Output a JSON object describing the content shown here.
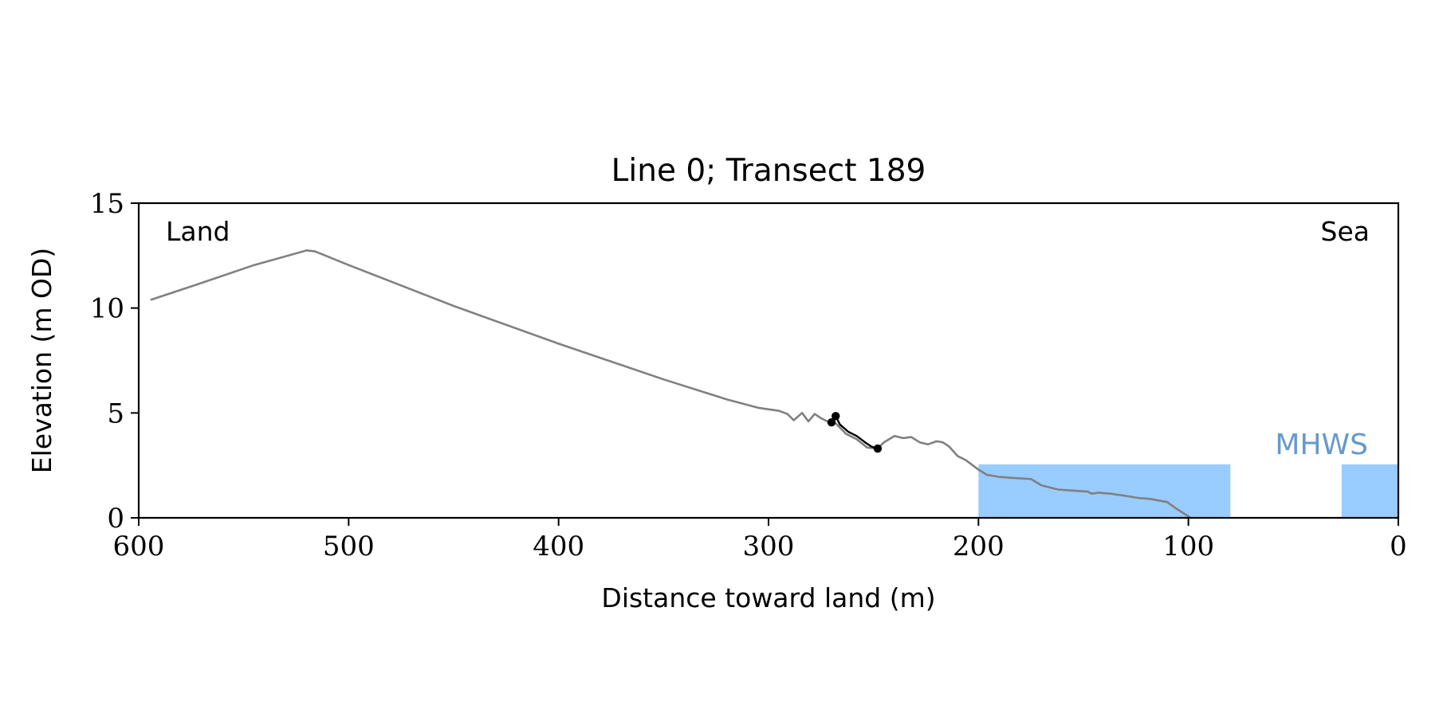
{
  "chart_data": {
    "type": "line",
    "title": "Line 0; Transect 189",
    "xlabel": "Distance toward land (m)",
    "ylabel": "Elevation (m OD)",
    "xlim": [
      600,
      0
    ],
    "ylim": [
      0,
      15
    ],
    "x_ticks": [
      600,
      500,
      400,
      300,
      200,
      100,
      0
    ],
    "y_ticks": [
      0,
      5,
      10,
      15
    ],
    "grid": false,
    "corner_labels": {
      "left": "Land",
      "right": "Sea"
    },
    "mhws": {
      "label": "MHWS",
      "level": 2.55,
      "color": "#99ccff",
      "label_color": "#6699cc",
      "regions": [
        [
          200,
          80
        ],
        [
          27,
          0
        ]
      ]
    },
    "series": [
      {
        "color": "#808080",
        "x": [
          594,
          570,
          545,
          520,
          516,
          500,
          450,
          400,
          350,
          320,
          305,
          295,
          291,
          288,
          284,
          281,
          278,
          275,
          272,
          268,
          263,
          258,
          253,
          248,
          245,
          240,
          236,
          232,
          228,
          224,
          220,
          217,
          214,
          210,
          206,
          200,
          196,
          190,
          183,
          175,
          170,
          162,
          155,
          148,
          146,
          143,
          137,
          130,
          124,
          118,
          110,
          106,
          102,
          99
        ],
        "y": [
          10.4,
          11.2,
          12.05,
          12.75,
          12.7,
          12.05,
          10.1,
          8.3,
          6.6,
          5.65,
          5.25,
          5.1,
          4.95,
          4.65,
          5.0,
          4.6,
          4.95,
          4.75,
          4.6,
          4.5,
          4.0,
          3.75,
          3.35,
          3.3,
          3.6,
          3.9,
          3.8,
          3.85,
          3.6,
          3.5,
          3.65,
          3.6,
          3.4,
          2.95,
          2.75,
          2.3,
          2.05,
          1.95,
          1.9,
          1.85,
          1.55,
          1.35,
          1.3,
          1.25,
          1.15,
          1.2,
          1.15,
          1.05,
          0.95,
          0.9,
          0.75,
          0.45,
          0.2,
          0.0
        ]
      },
      {
        "color": "#000000",
        "x": [
          270,
          268,
          266,
          262,
          258,
          254,
          251,
          248
        ],
        "y": [
          4.55,
          4.85,
          4.45,
          4.1,
          3.9,
          3.6,
          3.4,
          3.3
        ]
      }
    ],
    "markers": {
      "color": "#000000",
      "x": [
        270,
        268,
        248
      ],
      "y": [
        4.55,
        4.85,
        3.3
      ]
    }
  }
}
